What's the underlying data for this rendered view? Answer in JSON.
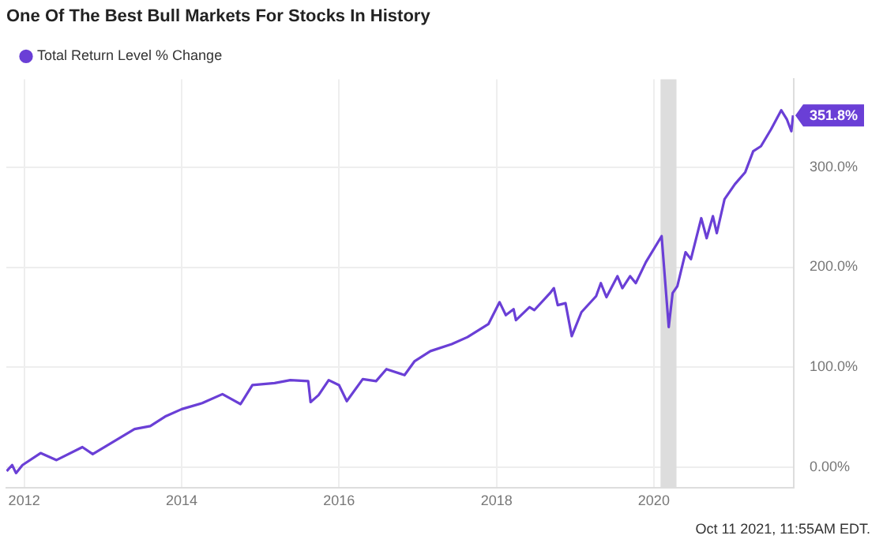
{
  "chart_data": {
    "type": "line",
    "title": "One Of The Best Bull Markets For Stocks In History",
    "x": [
      "2011-10-12",
      "2011-11-06",
      "2011-11-24",
      "2011-12-24",
      "2012-03-17",
      "2012-05-30",
      "2012-09-27",
      "2012-11-14",
      "2013-05-27",
      "2013-08-08",
      "2013-10-20",
      "2014-01-01",
      "2014-04-06",
      "2014-07-09",
      "2014-10-01",
      "2014-11-25",
      "2015-03-08",
      "2015-05-20",
      "2015-08-11",
      "2015-08-22",
      "2015-09-28",
      "2015-11-14",
      "2016-01-01",
      "2016-02-06",
      "2016-04-20",
      "2016-06-21",
      "2016-08-08",
      "2016-10-31",
      "2016-12-17",
      "2017-02-28",
      "2017-06-07",
      "2017-08-19",
      "2017-11-24",
      "2018-01-15",
      "2018-02-13",
      "2018-03-21",
      "2018-04-01",
      "2018-06-03",
      "2018-06-25",
      "2018-09-06",
      "2018-09-24",
      "2018-10-12",
      "2018-11-17",
      "2018-12-16",
      "2019-01-30",
      "2019-04-08",
      "2019-04-30",
      "2019-05-26",
      "2019-07-16",
      "2019-08-08",
      "2019-09-13",
      "2019-10-09",
      "2019-11-25",
      "2020-02-06",
      "2020-03-10",
      "2020-03-28",
      "2020-04-19",
      "2020-05-27",
      "2020-06-21",
      "2020-08-08",
      "2020-09-02",
      "2020-10-01",
      "2020-10-19",
      "2020-11-24",
      "2021-01-11",
      "2021-02-28",
      "2021-04-06",
      "2021-05-12",
      "2021-06-28",
      "2021-08-14",
      "2021-09-09",
      "2021-09-30",
      "2021-10-08"
    ],
    "series": [
      {
        "name": "Total Return Level % Change",
        "color": "#6a3fd6",
        "values": [
          -4,
          2,
          -6,
          2,
          14,
          7,
          20,
          13,
          38,
          41,
          51,
          58,
          64,
          73,
          63,
          82,
          84,
          87,
          86,
          65,
          72,
          87,
          82,
          66,
          88,
          86,
          98,
          92,
          106,
          116,
          123,
          130,
          143,
          165,
          152,
          158,
          147,
          160,
          157,
          174,
          179,
          162,
          164,
          131,
          155,
          171,
          184,
          170,
          191,
          179,
          191,
          184,
          205,
          231,
          140,
          174,
          181,
          215,
          208,
          249,
          229,
          251,
          234,
          268,
          283,
          295,
          316,
          321,
          338,
          357,
          348,
          336,
          351.8
        ],
        "value_labels": [
          null,
          null,
          null,
          null,
          null,
          null,
          null,
          null,
          null,
          null,
          null,
          null,
          null,
          null,
          null,
          null,
          null,
          null,
          null,
          null,
          null,
          null,
          null,
          null,
          null,
          null,
          null,
          null,
          null,
          null,
          null,
          null,
          null,
          null,
          null,
          null,
          null,
          null,
          null,
          null,
          null,
          null,
          null,
          null,
          null,
          null,
          null,
          null,
          null,
          null,
          null,
          null,
          null,
          null,
          null,
          null,
          null,
          null,
          null,
          null,
          null,
          null,
          null,
          null,
          null,
          null,
          null,
          null,
          null,
          null,
          null,
          null,
          "351.8%"
        ]
      }
    ],
    "xlim": [
      "2011-10-10",
      "2021-10-11"
    ],
    "xticks": [
      {
        "value": "2012",
        "label": "2012"
      },
      {
        "value": "2014",
        "label": "2014"
      },
      {
        "value": "2016",
        "label": "2016"
      },
      {
        "value": "2018",
        "label": "2018"
      },
      {
        "value": "2020",
        "label": "2020"
      }
    ],
    "ylim": [
      -21,
      388
    ],
    "yticks": [
      {
        "value": 0,
        "label": "0.00%"
      },
      {
        "value": 100,
        "label": "100.0%"
      },
      {
        "value": 200,
        "label": "200.0%"
      },
      {
        "value": 300,
        "label": "300.0%"
      }
    ],
    "bands": [
      {
        "axis": "x",
        "from": "2020-02-01",
        "to": "2020-04-15",
        "color": "#dddddd"
      }
    ],
    "annotations": [
      "Oct 11 2021, 11:55AM EDT."
    ],
    "grid": true,
    "legend": "top left",
    "marker": "none",
    "line_style": "solid"
  }
}
